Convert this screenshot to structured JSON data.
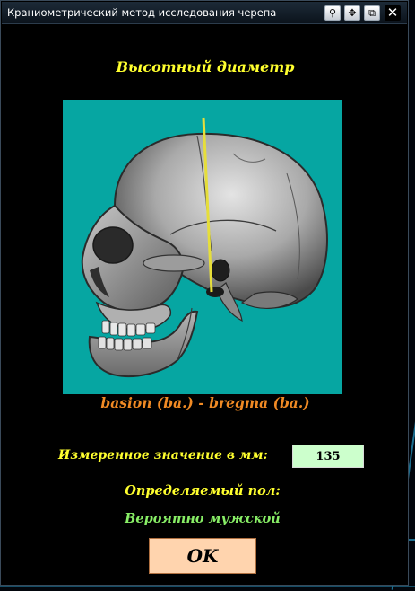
{
  "window": {
    "title": "Краниометрический метод исследования черепа",
    "buttons": {
      "pin": "⚲",
      "move": "✥",
      "restore": "⧉",
      "close": "✕"
    }
  },
  "content": {
    "heading": "Высотный диаметр",
    "figure_caption": "basion (ba.) - bregma (ba.)",
    "measure_label": "Измеренное значение в мм:",
    "measure_value": "135",
    "sex_label": "Определяемый пол:",
    "sex_result": "Вероятно мужской",
    "ok_label": "OK"
  },
  "colors": {
    "heading": "#ffff2e",
    "caption": "#f08a24",
    "result": "#88ee66",
    "figure_background": "#06a6a2",
    "input_background": "#ccffcc",
    "ok_background": "#ffd4ae",
    "measure_line": "#e6de3a"
  },
  "icons": {
    "pin": "pin-icon",
    "move": "move-icon",
    "restore": "restore-icon",
    "close": "close-icon"
  }
}
